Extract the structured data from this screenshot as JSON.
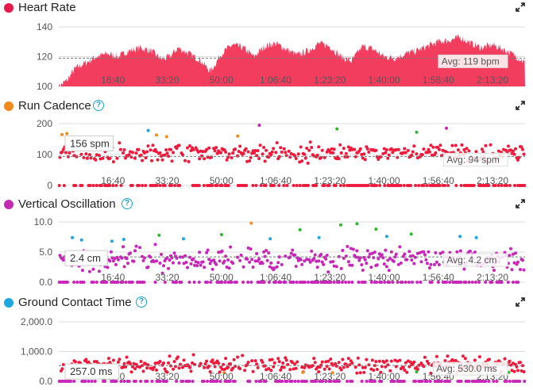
{
  "panels": [
    {
      "id": "heart-rate",
      "title": "Heart Rate",
      "color": "#e8194a",
      "has_help": false,
      "chart_data": {
        "type": "area",
        "ylim": [
          100,
          140
        ],
        "yticks": [
          "140",
          "120",
          "100"
        ],
        "ytick_values": [
          140,
          120,
          100
        ],
        "xticks": [
          "16:40",
          "33:20",
          "50:00",
          "1:06:40",
          "1:23:20",
          "1:40:00",
          "1:56:40",
          "2:13:20"
        ],
        "xtick_seconds": [
          1000,
          2000,
          3000,
          4000,
          5000,
          6000,
          7000,
          8000
        ],
        "xlim_seconds": [
          0,
          8600
        ],
        "avg_label": "Avg: 119 bpm",
        "avg_value": 119,
        "series_color": "#f23d5f",
        "envelope": [
          [
            0,
            100
          ],
          [
            150,
            104
          ],
          [
            300,
            112
          ],
          [
            500,
            116
          ],
          [
            700,
            120
          ],
          [
            900,
            122
          ],
          [
            1100,
            120
          ],
          [
            1300,
            124
          ],
          [
            1500,
            126
          ],
          [
            1700,
            124
          ],
          [
            1900,
            118
          ],
          [
            2050,
            120
          ],
          [
            2200,
            126
          ],
          [
            2400,
            122
          ],
          [
            2600,
            118
          ],
          [
            2800,
            110
          ],
          [
            3000,
            122
          ],
          [
            3200,
            128
          ],
          [
            3400,
            126
          ],
          [
            3600,
            120
          ],
          [
            3800,
            127
          ],
          [
            4000,
            129
          ],
          [
            4200,
            125
          ],
          [
            4400,
            121
          ],
          [
            4600,
            124
          ],
          [
            4800,
            129
          ],
          [
            5000,
            127
          ],
          [
            5200,
            120
          ],
          [
            5400,
            117
          ],
          [
            5600,
            127
          ],
          [
            5800,
            125
          ],
          [
            6000,
            120
          ],
          [
            6200,
            119
          ],
          [
            6400,
            122
          ],
          [
            6600,
            124
          ],
          [
            6800,
            127
          ],
          [
            7000,
            130
          ],
          [
            7200,
            131
          ],
          [
            7400,
            133
          ],
          [
            7600,
            129
          ],
          [
            7800,
            126
          ],
          [
            8000,
            128
          ],
          [
            8200,
            125
          ],
          [
            8400,
            121
          ],
          [
            8600,
            116
          ]
        ]
      }
    },
    {
      "id": "run-cadence",
      "title": "Run Cadence",
      "color": "#f08a1c",
      "has_help": true,
      "chart_data": {
        "type": "scatter",
        "ylim": [
          0,
          200
        ],
        "yticks": [
          "200",
          "100",
          "0"
        ],
        "ytick_values": [
          200,
          100,
          0
        ],
        "xticks": [
          "16:40",
          "33:20",
          "50:00",
          "1:06:40",
          "1:23:20",
          "1:40:00",
          "1:56:40",
          "2:13:20"
        ],
        "xtick_seconds": [
          1000,
          2000,
          3000,
          4000,
          5000,
          6000,
          7000,
          8000
        ],
        "xlim_seconds": [
          0,
          8600
        ],
        "value_label": "156 spm",
        "avg_label": "Avg: 94 spm",
        "avg_value": 94,
        "main_color": "#f0193c",
        "bands": [
          {
            "base": 105,
            "spread": 28
          }
        ],
        "zero_row": true,
        "extra_points": [
          {
            "x": 60,
            "y": 165,
            "color": "#f08a1c"
          },
          {
            "x": 150,
            "y": 168,
            "color": "#f08a1c"
          },
          {
            "x": 1650,
            "y": 178,
            "color": "#1da7e0"
          },
          {
            "x": 1800,
            "y": 163,
            "color": "#f08a1c"
          },
          {
            "x": 1990,
            "y": 158,
            "color": "#f08a1c"
          },
          {
            "x": 3300,
            "y": 160,
            "color": "#f08a1c"
          },
          {
            "x": 3700,
            "y": 195,
            "color": "#c726b8"
          },
          {
            "x": 5130,
            "y": 183,
            "color": "#2eb82e"
          },
          {
            "x": 6600,
            "y": 172,
            "color": "#2eb82e"
          },
          {
            "x": 7150,
            "y": 185,
            "color": "#c726b8"
          }
        ]
      }
    },
    {
      "id": "vertical-oscillation",
      "title": "Vertical Oscillation",
      "color": "#c42bb2",
      "has_help": true,
      "chart_data": {
        "type": "scatter",
        "ylim": [
          0,
          10
        ],
        "yticks": [
          "10.0",
          "5.0",
          "0.0"
        ],
        "ytick_values": [
          10,
          5,
          0
        ],
        "xticks": [
          "16:40",
          "33:20",
          "50:00",
          "1:06:40",
          "1:23:20",
          "1:40:00",
          "1:56:40",
          "2:13:20"
        ],
        "xtick_seconds": [
          1000,
          2000,
          3000,
          4000,
          5000,
          6000,
          7000,
          8000
        ],
        "xlim_seconds": [
          0,
          8600
        ],
        "value_label": "2.4 cm",
        "avg_label": "Avg: 4.2 cm",
        "avg_value": 4.2,
        "main_color": "#c726b8",
        "bands": [
          {
            "base": 3.8,
            "spread": 1.8
          }
        ],
        "zero_row": true,
        "extra_points": [
          {
            "x": 250,
            "y": 7.4,
            "color": "#1da7e0"
          },
          {
            "x": 420,
            "y": 7.0,
            "color": "#1da7e0"
          },
          {
            "x": 980,
            "y": 6.8,
            "color": "#1da7e0"
          },
          {
            "x": 1200,
            "y": 7.1,
            "color": "#1da7e0"
          },
          {
            "x": 1850,
            "y": 7.8,
            "color": "#2eb82e"
          },
          {
            "x": 2300,
            "y": 7.2,
            "color": "#1da7e0"
          },
          {
            "x": 3000,
            "y": 7.9,
            "color": "#2eb82e"
          },
          {
            "x": 3550,
            "y": 9.8,
            "color": "#f08a1c"
          },
          {
            "x": 3900,
            "y": 7.2,
            "color": "#1da7e0"
          },
          {
            "x": 4450,
            "y": 8.7,
            "color": "#2eb82e"
          },
          {
            "x": 4800,
            "y": 7.4,
            "color": "#1da7e0"
          },
          {
            "x": 5200,
            "y": 9.5,
            "color": "#2eb82e"
          },
          {
            "x": 5500,
            "y": 9.7,
            "color": "#2eb82e"
          },
          {
            "x": 5850,
            "y": 8.8,
            "color": "#2eb82e"
          },
          {
            "x": 6050,
            "y": 7.6,
            "color": "#1da7e0"
          },
          {
            "x": 6500,
            "y": 8.0,
            "color": "#2eb82e"
          },
          {
            "x": 7400,
            "y": 7.6,
            "color": "#1da7e0"
          },
          {
            "x": 7700,
            "y": 7.4,
            "color": "#1da7e0"
          }
        ]
      }
    },
    {
      "id": "ground-contact-time",
      "title": "Ground Contact Time",
      "color": "#1da7e0",
      "has_help": true,
      "chart_data": {
        "type": "scatter",
        "ylim": [
          0,
          2000
        ],
        "yticks": [
          "2,000.0",
          "1,000.0",
          "0.0"
        ],
        "ytick_values": [
          2000,
          1000,
          0
        ],
        "xticks": [
          "16:40",
          "33:20",
          "50:00",
          "1:06:40",
          "1:23:20",
          "1:40:00",
          "1:56:40",
          "2:13:20"
        ],
        "xtick_seconds": [
          1000,
          2000,
          3000,
          4000,
          5000,
          6000,
          7000,
          8000
        ],
        "xlim_seconds": [
          0,
          8600
        ],
        "value_label": "257.0 ms",
        "avg_label": "Avg: 530.0 ms",
        "avg_value": 530,
        "main_color": "#f0193c",
        "bands": [
          {
            "base": 540,
            "spread": 260
          }
        ],
        "zero_row": true,
        "zero_color": "#c726b8",
        "extra_points": [
          {
            "x": 3050,
            "y": 290,
            "color": "#f08a1c"
          },
          {
            "x": 4500,
            "y": 300,
            "color": "#f08a1c"
          },
          {
            "x": 5050,
            "y": 290,
            "color": "#f08a1c"
          },
          {
            "x": 6600,
            "y": 320,
            "color": "#2eb82e"
          },
          {
            "x": 7600,
            "y": 280,
            "color": "#f08a1c"
          },
          {
            "x": 8300,
            "y": 300,
            "color": "#2eb82e"
          },
          {
            "x": 140,
            "y": 310,
            "color": "#2eb82e"
          }
        ]
      }
    }
  ]
}
